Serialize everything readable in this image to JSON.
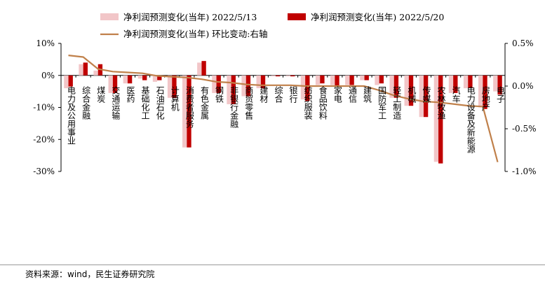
{
  "chart_data": {
    "type": "bar",
    "categories": [
      "电力及公用事业",
      "综合金融",
      "煤炭",
      "交通运输",
      "医药",
      "基础化工",
      "石油石化",
      "计算机",
      "消费者服务",
      "有色金属",
      "钢铁",
      "非银行金融",
      "商贸零售",
      "建材",
      "综合",
      "银行",
      "纺织服装",
      "食品饮料",
      "家电",
      "通信",
      "建筑",
      "国防军工",
      "轻工制造",
      "机械",
      "传媒",
      "农林牧渔",
      "汽车",
      "电力设备及新能源",
      "房地产",
      "电子"
    ],
    "series": [
      {
        "name": "净利润预测变化(当年) 2022/5/13",
        "color": "#f2c6c8",
        "axis": "left",
        "values": [
          -4.0,
          3.5,
          1.5,
          -5.5,
          -2.5,
          -1.0,
          -2.0,
          -7.0,
          -22.5,
          4.0,
          -5.5,
          -9.0,
          -6.5,
          -4.0,
          -0.3,
          -0.3,
          -7.5,
          -3.0,
          -3.0,
          -3.0,
          -1.5,
          -3.0,
          -7.0,
          -9.5,
          -13.0,
          -27.0,
          -5.5,
          -4.0,
          -10.0,
          -5.0
        ]
      },
      {
        "name": "净利润预测变化(当年) 2022/5/20",
        "color": "#c00000",
        "axis": "left",
        "values": [
          -3.5,
          4.0,
          3.5,
          -5.5,
          -2.5,
          -1.5,
          -1.5,
          -7.0,
          -22.5,
          4.5,
          -5.5,
          -9.0,
          -6.5,
          -4.0,
          -0.3,
          -0.3,
          -8.0,
          -2.5,
          -3.5,
          -3.0,
          -1.5,
          -2.5,
          -7.0,
          -9.5,
          -13.0,
          -27.5,
          -5.5,
          -4.0,
          -10.5,
          -6.0
        ]
      },
      {
        "name": "净利润预测变化(当年) 环比变动:右轴",
        "color": "#c0804a",
        "type": "line",
        "axis": "right",
        "values": [
          0.36,
          0.34,
          0.2,
          0.17,
          0.16,
          0.15,
          0.12,
          0.11,
          0.1,
          0.08,
          0.05,
          0.04,
          0.02,
          0.01,
          0.01,
          0.01,
          0.0,
          0.0,
          0.0,
          0.0,
          0.0,
          -0.05,
          -0.11,
          -0.15,
          -0.18,
          -0.19,
          -0.21,
          -0.23,
          -0.24,
          -0.89
        ]
      }
    ],
    "left_axis": {
      "min": -30,
      "max": 10,
      "ticks": [
        10,
        0,
        -10,
        -20,
        -30
      ],
      "tick_labels": [
        "10%",
        "0%",
        "-10%",
        "-20%",
        "-30%"
      ]
    },
    "right_axis": {
      "min": -1.0,
      "max": 0.5,
      "ticks": [
        0.5,
        0.0,
        -0.5,
        -1.0
      ],
      "tick_labels": [
        "0.5%",
        "0.0%",
        "-0.5%",
        "-1.0%"
      ]
    },
    "legend": {
      "placement": "top-center"
    }
  },
  "footer": {
    "source": "资料来源：wind，民生证券研究院"
  }
}
